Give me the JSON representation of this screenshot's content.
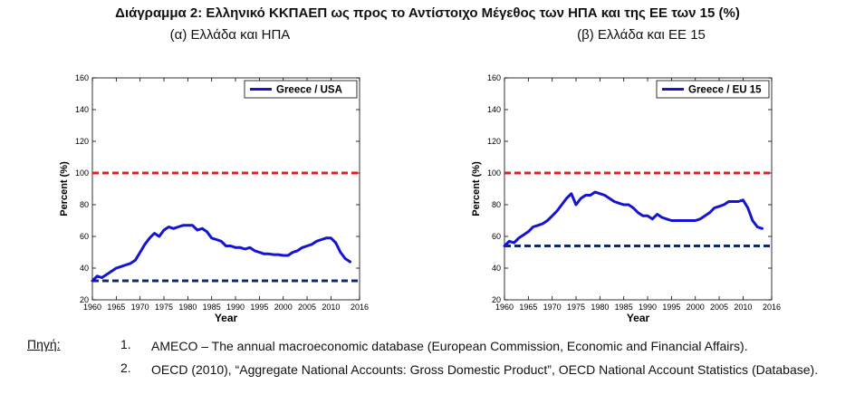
{
  "page": {
    "title": "Διάγραμμα 2: Ελληνικό ΚΚΠΑΕΠ ως προς το Αντίστοιχο Μέγεθος των ΗΠΑ και της ΕΕ των 15 (%)"
  },
  "sources": {
    "label": "Πηγή:",
    "items": [
      {
        "num": "1.",
        "text": "AMECO – The annual macroeconomic database (European Commission, Economic and Financial Affairs)."
      },
      {
        "num": "2.",
        "text": "OECD (2010), “Aggregate National Accounts: Gross Domestic Product”, OECD National Account Statistics (Database)."
      }
    ]
  },
  "chart_data": [
    {
      "type": "line",
      "subtitle": "(α) Ελλάδα και ΗΠΑ",
      "xlabel": "Year",
      "ylabel": "Percent (%)",
      "xlim": [
        1960,
        2016
      ],
      "ylim": [
        20,
        160
      ],
      "xticks": [
        "1960",
        "1965",
        "1970",
        "1975",
        "1980",
        "1985",
        "1990",
        "1995",
        "2000",
        "2005",
        "2010",
        "2016"
      ],
      "yticks": [
        "20",
        "40",
        "60",
        "80",
        "100",
        "120",
        "140",
        "160"
      ],
      "grid": false,
      "legend_position": "top-right",
      "colors": {
        "series": "#1414d2",
        "ref100": "#e01f1f",
        "baseline": "#0f2a6b"
      },
      "reference_lines": [
        {
          "y": 100,
          "style": "dashed",
          "color": "red"
        },
        {
          "y": 32,
          "style": "dashed",
          "color": "navy"
        }
      ],
      "series": [
        {
          "name": "Greece / USA",
          "x": [
            1960,
            1961,
            1962,
            1963,
            1964,
            1965,
            1966,
            1967,
            1968,
            1969,
            1970,
            1971,
            1972,
            1973,
            1974,
            1975,
            1976,
            1977,
            1978,
            1979,
            1980,
            1981,
            1982,
            1983,
            1984,
            1985,
            1986,
            1987,
            1988,
            1989,
            1990,
            1991,
            1992,
            1993,
            1994,
            1995,
            1996,
            1997,
            1998,
            1999,
            2000,
            2001,
            2002,
            2003,
            2004,
            2005,
            2006,
            2007,
            2008,
            2009,
            2010,
            2011,
            2012,
            2013,
            2014
          ],
          "y": [
            32,
            35,
            34,
            36,
            38,
            40,
            41,
            42,
            43,
            45,
            50,
            55,
            59,
            62,
            60,
            64,
            66,
            65,
            66,
            67,
            67,
            67,
            64,
            65,
            63,
            59,
            58,
            57,
            54,
            54,
            53,
            53,
            52,
            53,
            51,
            50,
            49,
            49,
            48.5,
            48.5,
            48,
            48,
            50,
            51,
            53,
            54,
            55,
            57,
            58,
            59,
            59,
            56,
            50,
            46,
            44
          ]
        }
      ]
    },
    {
      "type": "line",
      "subtitle": "(β) Ελλάδα και ΕΕ 15",
      "xlabel": "Year",
      "ylabel": "Percent (%)",
      "xlim": [
        1960,
        2016
      ],
      "ylim": [
        20,
        160
      ],
      "xticks": [
        "1960",
        "1965",
        "1970",
        "1975",
        "1980",
        "1985",
        "1990",
        "1995",
        "2000",
        "2005",
        "2010",
        "2016"
      ],
      "yticks": [
        "20",
        "40",
        "60",
        "80",
        "100",
        "120",
        "140",
        "160"
      ],
      "grid": false,
      "legend_position": "top-right",
      "colors": {
        "series": "#1414d2",
        "ref100": "#e01f1f",
        "baseline": "#0f2a6b"
      },
      "reference_lines": [
        {
          "y": 100,
          "style": "dashed",
          "color": "red"
        },
        {
          "y": 54,
          "style": "dashed",
          "color": "navy"
        }
      ],
      "series": [
        {
          "name": "Greece / EU 15",
          "x": [
            1960,
            1961,
            1962,
            1963,
            1964,
            1965,
            1966,
            1967,
            1968,
            1969,
            1970,
            1971,
            1972,
            1973,
            1974,
            1975,
            1976,
            1977,
            1978,
            1979,
            1980,
            1981,
            1982,
            1983,
            1984,
            1985,
            1986,
            1987,
            1988,
            1989,
            1990,
            1991,
            1992,
            1993,
            1994,
            1995,
            1996,
            1997,
            1998,
            1999,
            2000,
            2001,
            2002,
            2003,
            2004,
            2005,
            2006,
            2007,
            2008,
            2009,
            2010,
            2011,
            2012,
            2013,
            2014
          ],
          "y": [
            54,
            57,
            56,
            59,
            61,
            63,
            66,
            67,
            68,
            70,
            73,
            76,
            80,
            84,
            87,
            80,
            84,
            86,
            86,
            88,
            87,
            86,
            84,
            82,
            81,
            80,
            80,
            78,
            75,
            73,
            73,
            71,
            74,
            72,
            71,
            70,
            70,
            70,
            70,
            70,
            70,
            71,
            73,
            75,
            78,
            79,
            80,
            82,
            82,
            82,
            83,
            78,
            70,
            66,
            65
          ]
        }
      ]
    }
  ]
}
